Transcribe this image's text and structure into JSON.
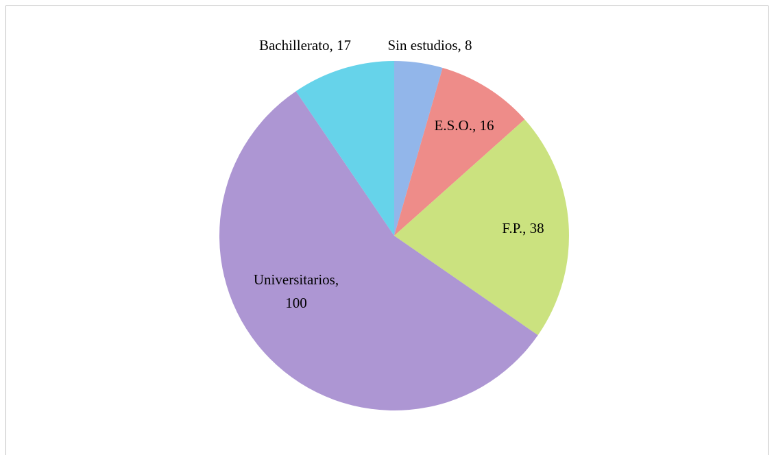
{
  "chart_data": {
    "type": "pie",
    "labels": [
      "Sin estudios, 8",
      "E.S.O., 16",
      "F.P., 38",
      "Universitarios, 100",
      "Bachillerato, 17"
    ],
    "values": [
      8,
      16,
      38,
      100,
      17
    ],
    "colors": [
      "#92b6ea",
      "#ee8c89",
      "#cbe27f",
      "#ad96d3",
      "#66d3ea"
    ]
  }
}
